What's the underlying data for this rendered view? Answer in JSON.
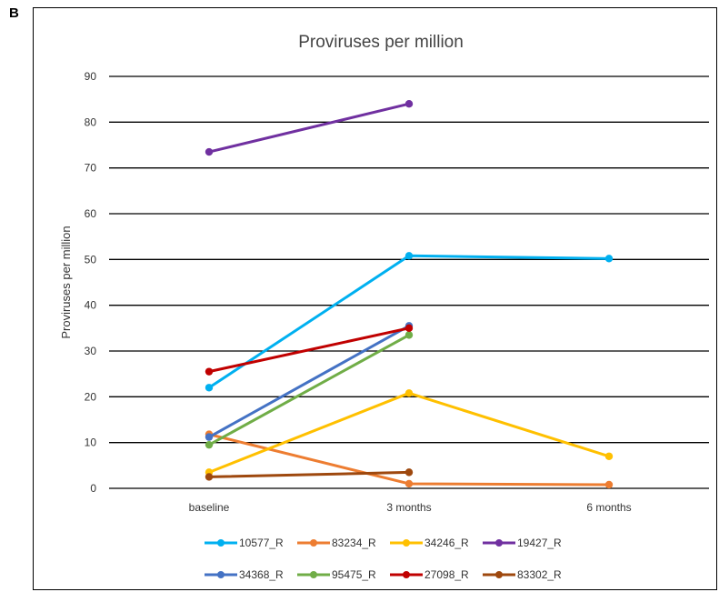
{
  "panel_label": "B",
  "chart_data": {
    "type": "line",
    "title": "Proviruses per million",
    "xlabel": "",
    "ylabel": "Proviruses per million",
    "categories": [
      "baseline",
      "3 months",
      "6 months"
    ],
    "ylim": [
      0,
      90
    ],
    "yticks": [
      0,
      10,
      20,
      30,
      40,
      50,
      60,
      70,
      80,
      90
    ],
    "grid": true,
    "legend": "bottom",
    "series": [
      {
        "name": "10577_R",
        "color": "#00b0f0",
        "values": [
          22,
          50.8,
          50.2
        ]
      },
      {
        "name": "83234_R",
        "color": "#ed7d31",
        "values": [
          11.8,
          1,
          0.8
        ]
      },
      {
        "name": "34246_R",
        "color": "#ffc000",
        "values": [
          3.5,
          20.8,
          7
        ]
      },
      {
        "name": "19427_R",
        "color": "#7030a0",
        "values": [
          73.5,
          84,
          null
        ]
      },
      {
        "name": "34368_R",
        "color": "#4472c4",
        "values": [
          11.2,
          35.5,
          null
        ]
      },
      {
        "name": "95475_R",
        "color": "#70ad47",
        "values": [
          9.5,
          33.5,
          null
        ]
      },
      {
        "name": "27098_R",
        "color": "#c00000",
        "values": [
          25.5,
          35,
          null
        ]
      },
      {
        "name": "83302_R",
        "color": "#9e480e",
        "values": [
          2.5,
          3.5,
          null
        ]
      }
    ]
  }
}
